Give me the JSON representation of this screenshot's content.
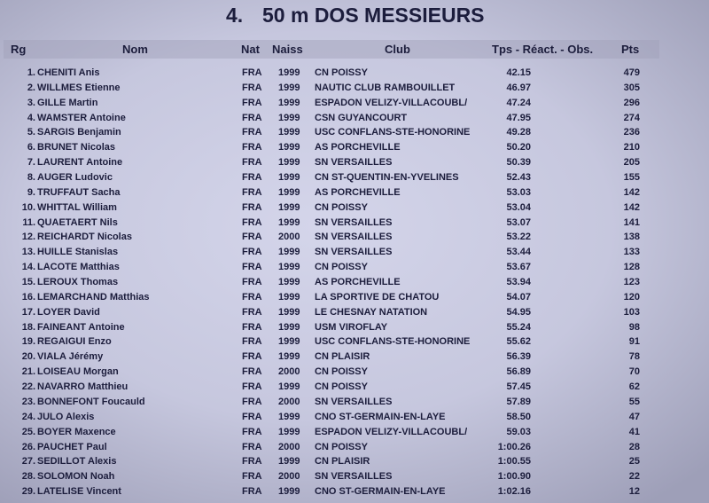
{
  "title": {
    "number": "4.",
    "event": "50 m DOS MESSIEURS"
  },
  "headers": {
    "rank": "Rg",
    "name": "Nom",
    "nat": "Nat",
    "birth": "Naiss",
    "club": "Club",
    "time": "Tps - Réact. - Obs.",
    "points": "Pts"
  },
  "rows": [
    {
      "rank": "1.",
      "name": "CHENITI Anis",
      "nat": "FRA",
      "birth": "1999",
      "club": "CN POISSY",
      "time": "42.15",
      "points": "479"
    },
    {
      "rank": "2.",
      "name": "WILLMES Etienne",
      "nat": "FRA",
      "birth": "1999",
      "club": "NAUTIC CLUB RAMBOUILLET",
      "time": "46.97",
      "points": "305"
    },
    {
      "rank": "3.",
      "name": "GILLE Martin",
      "nat": "FRA",
      "birth": "1999",
      "club": "ESPADON VELIZY-VILLACOUBL/",
      "time": "47.24",
      "points": "296"
    },
    {
      "rank": "4.",
      "name": "WAMSTER Antoine",
      "nat": "FRA",
      "birth": "1999",
      "club": "CSN GUYANCOURT",
      "time": "47.95",
      "points": "274"
    },
    {
      "rank": "5.",
      "name": "SARGIS Benjamin",
      "nat": "FRA",
      "birth": "1999",
      "club": "USC CONFLANS-STE-HONORINE",
      "time": "49.28",
      "points": "236"
    },
    {
      "rank": "6.",
      "name": "BRUNET Nicolas",
      "nat": "FRA",
      "birth": "1999",
      "club": "AS PORCHEVILLE",
      "time": "50.20",
      "points": "210"
    },
    {
      "rank": "7.",
      "name": "LAURENT Antoine",
      "nat": "FRA",
      "birth": "1999",
      "club": "SN VERSAILLES",
      "time": "50.39",
      "points": "205"
    },
    {
      "rank": "8.",
      "name": "AUGER Ludovic",
      "nat": "FRA",
      "birth": "1999",
      "club": "CN ST-QUENTIN-EN-YVELINES",
      "time": "52.43",
      "points": "155"
    },
    {
      "rank": "9.",
      "name": "TRUFFAUT Sacha",
      "nat": "FRA",
      "birth": "1999",
      "club": "AS PORCHEVILLE",
      "time": "53.03",
      "points": "142"
    },
    {
      "rank": "10.",
      "name": "WHITTAL William",
      "nat": "FRA",
      "birth": "1999",
      "club": "CN POISSY",
      "time": "53.04",
      "points": "142"
    },
    {
      "rank": "11.",
      "name": "QUAETAERT Nils",
      "nat": "FRA",
      "birth": "1999",
      "club": "SN VERSAILLES",
      "time": "53.07",
      "points": "141"
    },
    {
      "rank": "12.",
      "name": "REICHARDT Nicolas",
      "nat": "FRA",
      "birth": "2000",
      "club": "SN VERSAILLES",
      "time": "53.22",
      "points": "138"
    },
    {
      "rank": "13.",
      "name": "HUILLE Stanislas",
      "nat": "FRA",
      "birth": "1999",
      "club": "SN VERSAILLES",
      "time": "53.44",
      "points": "133"
    },
    {
      "rank": "14.",
      "name": "LACOTE Matthias",
      "nat": "FRA",
      "birth": "1999",
      "club": "CN POISSY",
      "time": "53.67",
      "points": "128"
    },
    {
      "rank": "15.",
      "name": "LEROUX Thomas",
      "nat": "FRA",
      "birth": "1999",
      "club": "AS PORCHEVILLE",
      "time": "53.94",
      "points": "123"
    },
    {
      "rank": "16.",
      "name": "LEMARCHAND Matthias",
      "nat": "FRA",
      "birth": "1999",
      "club": "LA SPORTIVE DE CHATOU",
      "time": "54.07",
      "points": "120"
    },
    {
      "rank": "17.",
      "name": "LOYER David",
      "nat": "FRA",
      "birth": "1999",
      "club": "LE CHESNAY NATATION",
      "time": "54.95",
      "points": "103"
    },
    {
      "rank": "18.",
      "name": "FAINEANT Antoine",
      "nat": "FRA",
      "birth": "1999",
      "club": "USM VIROFLAY",
      "time": "55.24",
      "points": "98"
    },
    {
      "rank": "19.",
      "name": "REGAIGUI Enzo",
      "nat": "FRA",
      "birth": "1999",
      "club": "USC CONFLANS-STE-HONORINE",
      "time": "55.62",
      "points": "91"
    },
    {
      "rank": "20.",
      "name": "VIALA Jérémy",
      "nat": "FRA",
      "birth": "1999",
      "club": "CN PLAISIR",
      "time": "56.39",
      "points": "78"
    },
    {
      "rank": "21.",
      "name": "LOISEAU Morgan",
      "nat": "FRA",
      "birth": "2000",
      "club": "CN POISSY",
      "time": "56.89",
      "points": "70"
    },
    {
      "rank": "22.",
      "name": "NAVARRO Matthieu",
      "nat": "FRA",
      "birth": "1999",
      "club": "CN POISSY",
      "time": "57.45",
      "points": "62"
    },
    {
      "rank": "23.",
      "name": "BONNEFONT Foucauld",
      "nat": "FRA",
      "birth": "2000",
      "club": "SN VERSAILLES",
      "time": "57.89",
      "points": "55"
    },
    {
      "rank": "24.",
      "name": "JULO Alexis",
      "nat": "FRA",
      "birth": "1999",
      "club": "CNO ST-GERMAIN-EN-LAYE",
      "time": "58.50",
      "points": "47"
    },
    {
      "rank": "25.",
      "name": "BOYER Maxence",
      "nat": "FRA",
      "birth": "1999",
      "club": "ESPADON VELIZY-VILLACOUBL/",
      "time": "59.03",
      "points": "41"
    },
    {
      "rank": "26.",
      "name": "PAUCHET Paul",
      "nat": "FRA",
      "birth": "2000",
      "club": "CN POISSY",
      "time": "1:00.26",
      "points": "28"
    },
    {
      "rank": "27.",
      "name": "SEDILLOT Alexis",
      "nat": "FRA",
      "birth": "1999",
      "club": "CN PLAISIR",
      "time": "1:00.55",
      "points": "25"
    },
    {
      "rank": "28.",
      "name": "SOLOMON Noah",
      "nat": "FRA",
      "birth": "2000",
      "club": "SN VERSAILLES",
      "time": "1:00.90",
      "points": "22"
    },
    {
      "rank": "29.",
      "name": "LATELISE Vincent",
      "nat": "FRA",
      "birth": "1999",
      "club": "CNO ST-GERMAIN-EN-LAYE",
      "time": "1:02.16",
      "points": "12"
    }
  ]
}
